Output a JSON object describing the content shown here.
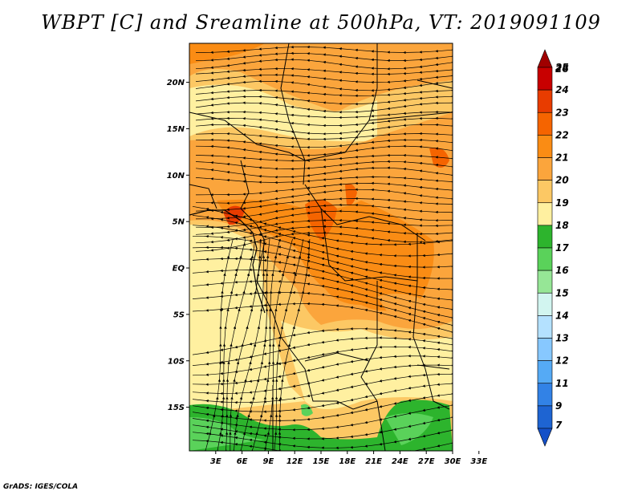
{
  "title": "WBPT [C] and Sreamline at 500hPa, VT: 2019091109",
  "footer": "GrADS: IGES/COLA",
  "axes": {
    "lat_labels": [
      "20N",
      "15N",
      "10N",
      "5N",
      "EQ",
      "5S",
      "10S",
      "15S"
    ],
    "lat_values": [
      20,
      15,
      10,
      5,
      0,
      -5,
      -10,
      -15
    ],
    "lon_labels": [
      "3E",
      "6E",
      "9E",
      "12E",
      "15E",
      "18E",
      "21E",
      "24E",
      "27E",
      "30E",
      "33E"
    ],
    "lon_values": [
      3,
      6,
      9,
      12,
      15,
      18,
      21,
      24,
      27,
      30,
      33
    ],
    "lon_range": [
      0,
      30
    ],
    "lat_range": [
      -19.7,
      24.2
    ]
  },
  "colorbar": {
    "labels": [
      "26",
      "25",
      "24",
      "23",
      "22",
      "21",
      "20",
      "19",
      "18",
      "17",
      "16",
      "15",
      "14",
      "13",
      "12",
      "11",
      "9",
      "7"
    ],
    "colors": [
      "#a00000",
      "#c80000",
      "#e83c00",
      "#f56400",
      "#fa8c14",
      "#fba53c",
      "#fcc864",
      "#fff0a0",
      "#2db42d",
      "#5ad25a",
      "#96e696",
      "#d2f5f0",
      "#b4e1ff",
      "#87c8ff",
      "#55aaf5",
      "#3282e6",
      "#1e64d2",
      "#1450c8"
    ]
  },
  "field": {
    "variable": "Wet-bulb potential temperature",
    "level": "500hPa",
    "valid_time": "2019091109"
  }
}
